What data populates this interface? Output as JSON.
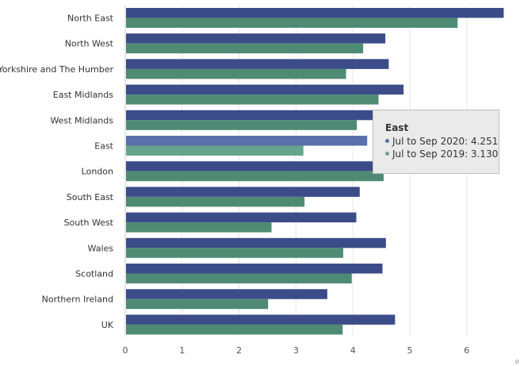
{
  "colors": {
    "series_2020": "#3b4c88",
    "series_2019": "#4f8b74",
    "highlight_2020": "#5970aa",
    "highlight_2019": "#66a58d",
    "gridline": "#e6e6e6",
    "axis": "#cccccc"
  },
  "chart_data": {
    "type": "bar",
    "orientation": "horizontal",
    "title": "",
    "xlabel": "",
    "ylabel": "",
    "xlim": [
      0,
      6.7
    ],
    "xticks": [
      0,
      1,
      2,
      3,
      4,
      5,
      6
    ],
    "grid": true,
    "categories": [
      "North East",
      "North West",
      "Yorkshire and The Humber",
      "East Midlands",
      "West Midlands",
      "East",
      "London",
      "South East",
      "South West",
      "Wales",
      "Scotland",
      "Northern Ireland",
      "UK"
    ],
    "series": [
      {
        "name": "Jul to Sep 2020",
        "values": [
          6.65,
          4.57,
          4.63,
          4.89,
          4.4,
          4.251,
          4.7,
          4.12,
          4.06,
          4.58,
          4.52,
          3.55,
          4.74
        ]
      },
      {
        "name": "Jul to Sep 2019",
        "values": [
          5.84,
          4.18,
          3.88,
          4.45,
          4.07,
          3.13,
          4.54,
          3.15,
          2.57,
          3.83,
          3.98,
          2.51,
          3.82
        ]
      }
    ],
    "highlighted_category": "East"
  },
  "tooltip": {
    "title": "East",
    "rows": [
      {
        "label": "Jul to Sep 2020: 4.251",
        "color": "#5970aa"
      },
      {
        "label": "Jul to Sep 2019: 3.130",
        "color": "#66a58d"
      }
    ]
  },
  "corner_mark": "0"
}
